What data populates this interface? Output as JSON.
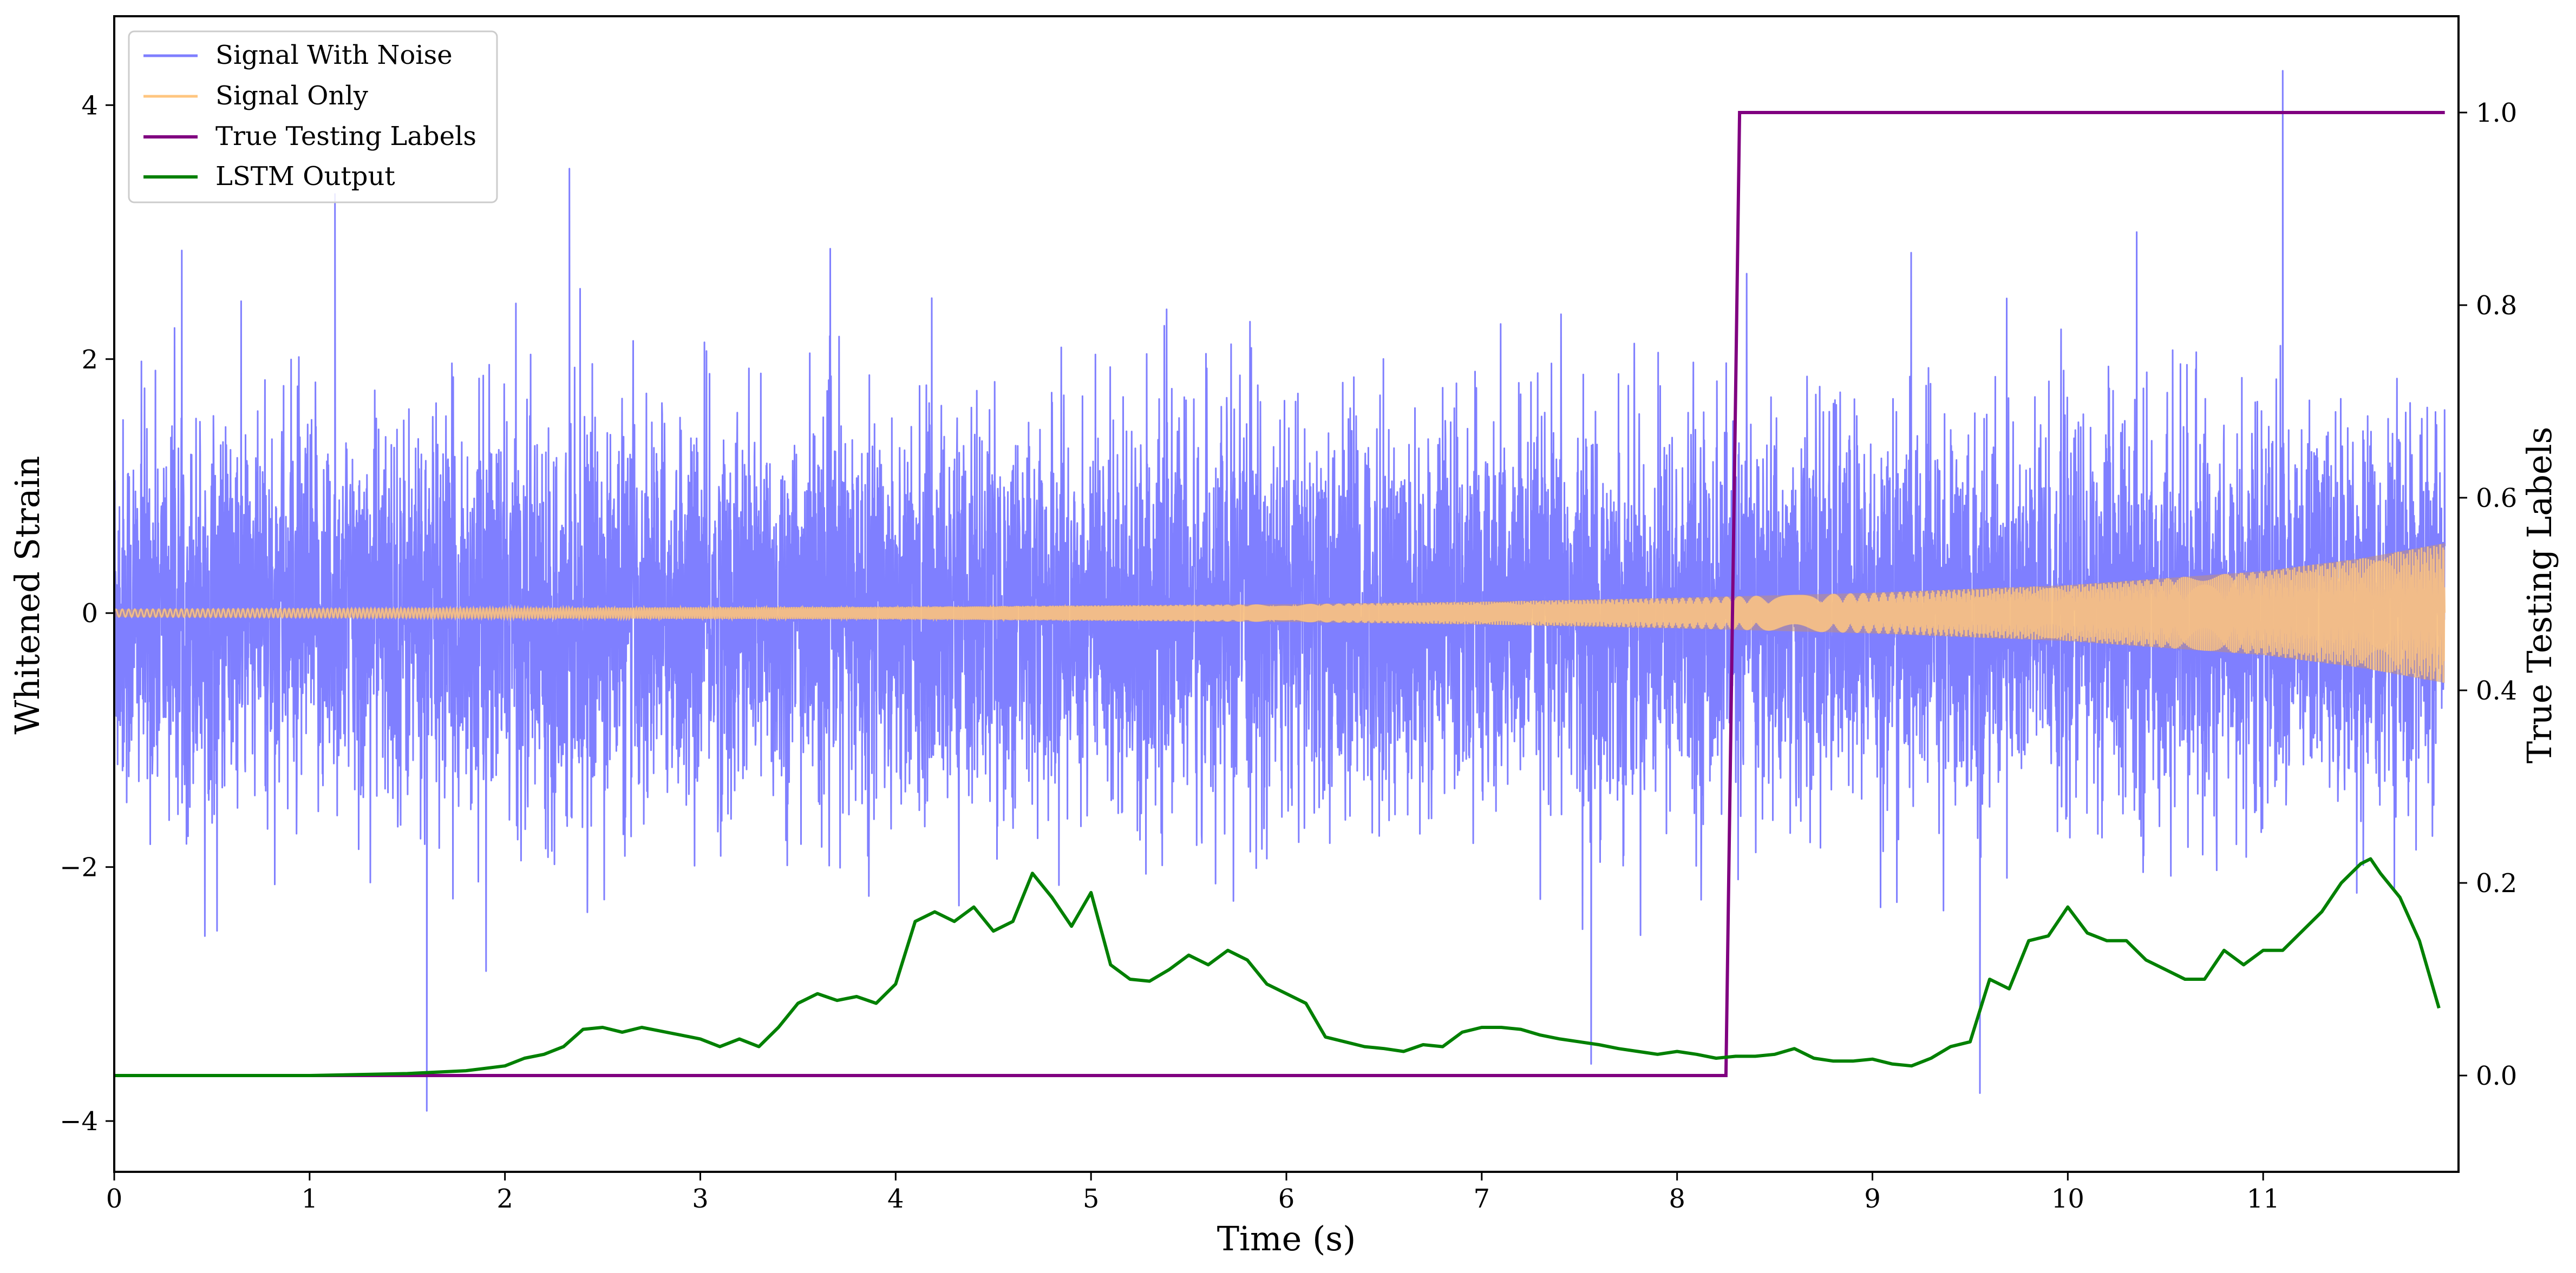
{
  "chart_data": {
    "type": "line",
    "xlabel": "Time (s)",
    "ylabel": "Whitened Strain",
    "y2label": "True Testing Labels",
    "xlim": [
      0,
      12
    ],
    "ylim": [
      -4.4,
      4.7
    ],
    "y2lim": [
      -0.1,
      1.1
    ],
    "x_ticks": [
      "0",
      "1",
      "2",
      "3",
      "4",
      "5",
      "6",
      "7",
      "8",
      "9",
      "10",
      "11"
    ],
    "y_ticks": [
      "−4",
      "−2",
      "0",
      "2",
      "4"
    ],
    "y2_ticks": [
      "0.0",
      "0.2",
      "0.4",
      "0.6",
      "0.8",
      "1.0"
    ],
    "grid": false,
    "legend_position": "top-left",
    "series": [
      {
        "name": "Signal With Noise",
        "axis": "left",
        "color": "#7f7fff",
        "description_values": {
          "noise_std": 0.75,
          "typical_extent": [
            -2.3,
            2.6
          ],
          "spikes": [
            [
              1.13,
              3.3
            ],
            [
              1.6,
              -3.92
            ],
            [
              2.33,
              3.5
            ],
            [
              7.56,
              -3.55
            ],
            [
              9.55,
              -3.78
            ],
            [
              11.1,
              4.27
            ]
          ]
        }
      },
      {
        "name": "Signal Only",
        "axis": "left",
        "color": "#ffc680",
        "envelope": {
          "x": [
            0,
            2,
            4,
            6,
            7,
            8,
            9,
            10,
            11,
            11.5,
            12
          ],
          "amp": [
            0.03,
            0.04,
            0.05,
            0.07,
            0.09,
            0.12,
            0.16,
            0.22,
            0.33,
            0.43,
            0.57
          ]
        }
      },
      {
        "name": "True Testing Labels",
        "axis": "right",
        "color": "#800080",
        "x": [
          0,
          8.25,
          8.32,
          11.93
        ],
        "values": [
          0,
          0,
          1,
          1
        ]
      },
      {
        "name": "LSTM Output",
        "axis": "right",
        "color": "#008000",
        "x": [
          0,
          1,
          1.5,
          1.8,
          2,
          2.1,
          2.2,
          2.3,
          2.4,
          2.5,
          2.6,
          2.7,
          2.8,
          2.9,
          3.0,
          3.1,
          3.2,
          3.3,
          3.4,
          3.5,
          3.6,
          3.7,
          3.8,
          3.9,
          4.0,
          4.1,
          4.2,
          4.3,
          4.4,
          4.5,
          4.6,
          4.7,
          4.8,
          4.9,
          5.0,
          5.1,
          5.2,
          5.3,
          5.4,
          5.5,
          5.6,
          5.7,
          5.8,
          5.9,
          6.0,
          6.1,
          6.2,
          6.3,
          6.4,
          6.5,
          6.6,
          6.7,
          6.8,
          6.9,
          7.0,
          7.1,
          7.2,
          7.3,
          7.4,
          7.5,
          7.6,
          7.7,
          7.8,
          7.9,
          8.0,
          8.1,
          8.2,
          8.3,
          8.4,
          8.5,
          8.6,
          8.7,
          8.8,
          8.9,
          9.0,
          9.1,
          9.2,
          9.3,
          9.4,
          9.5,
          9.6,
          9.7,
          9.8,
          9.9,
          10.0,
          10.1,
          10.2,
          10.3,
          10.4,
          10.5,
          10.6,
          10.7,
          10.8,
          10.9,
          11.0,
          11.1,
          11.2,
          11.3,
          11.4,
          11.5,
          11.55,
          11.6,
          11.7,
          11.8,
          11.9
        ],
        "values": [
          0.0,
          0.0,
          0.002,
          0.005,
          0.01,
          0.018,
          0.022,
          0.03,
          0.048,
          0.05,
          0.045,
          0.05,
          0.046,
          0.042,
          0.038,
          0.03,
          0.038,
          0.03,
          0.05,
          0.075,
          0.085,
          0.078,
          0.082,
          0.075,
          0.095,
          0.16,
          0.17,
          0.16,
          0.175,
          0.15,
          0.16,
          0.21,
          0.185,
          0.155,
          0.19,
          0.115,
          0.1,
          0.098,
          0.11,
          0.125,
          0.115,
          0.13,
          0.12,
          0.095,
          0.085,
          0.075,
          0.04,
          0.035,
          0.03,
          0.028,
          0.025,
          0.032,
          0.03,
          0.045,
          0.05,
          0.05,
          0.048,
          0.042,
          0.038,
          0.035,
          0.032,
          0.028,
          0.025,
          0.022,
          0.025,
          0.022,
          0.018,
          0.02,
          0.02,
          0.022,
          0.028,
          0.018,
          0.015,
          0.015,
          0.017,
          0.012,
          0.01,
          0.018,
          0.03,
          0.035,
          0.1,
          0.09,
          0.14,
          0.145,
          0.175,
          0.148,
          0.14,
          0.14,
          0.12,
          0.11,
          0.1,
          0.1,
          0.13,
          0.115,
          0.13,
          0.13,
          0.15,
          0.17,
          0.2,
          0.22,
          0.225,
          0.21,
          0.185,
          0.14,
          0.07
        ]
      }
    ]
  }
}
